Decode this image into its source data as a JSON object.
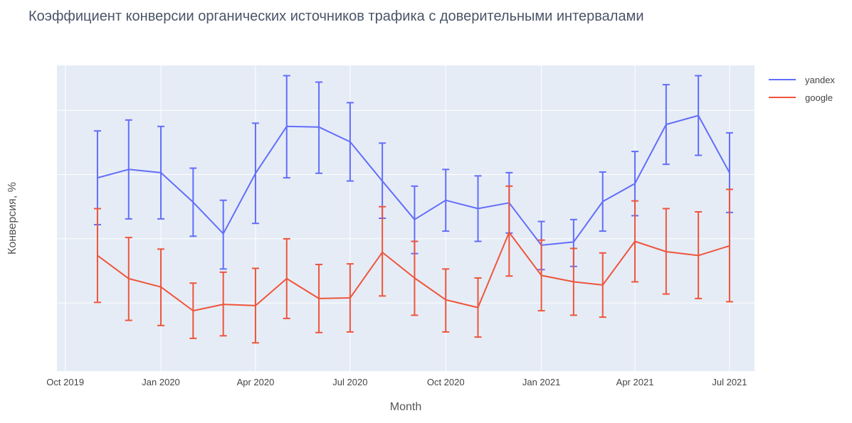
{
  "title": "Коэффициент конверсии органических источников трафика с доверительными интервалами",
  "chart_data": {
    "type": "line",
    "title": "Коэффициент конверсии органических источников трафика с доверительными интервалами",
    "xlabel": "Month",
    "ylabel": "Конверсия, %",
    "x_tick_labels": [
      "Oct 2019",
      "Jan 2020",
      "Apr 2020",
      "Jul 2020",
      "Oct 2020",
      "Jan 2021",
      "Apr 2021",
      "Jul 2021"
    ],
    "x": [
      "2019-11-01",
      "2019-12-01",
      "2020-01-01",
      "2020-02-01",
      "2020-03-01",
      "2020-04-01",
      "2020-05-01",
      "2020-06-01",
      "2020-07-01",
      "2020-08-01",
      "2020-09-01",
      "2020-10-01",
      "2020-11-01",
      "2020-12-01",
      "2021-01-01",
      "2021-02-01",
      "2021-03-01",
      "2021-04-01",
      "2021-05-01",
      "2021-06-01",
      "2021-07-01"
    ],
    "xlim": [
      "2019-09-23",
      "2021-07-25"
    ],
    "ylim": [
      0.94,
      5.7
    ],
    "y_grid_values": [
      2,
      3,
      4,
      5
    ],
    "grid": true,
    "legend_position": "top-right",
    "background": "#e5ecf6",
    "series": [
      {
        "name": "yandex",
        "color": "#636efa",
        "values": [
          3.95,
          4.08,
          4.03,
          3.57,
          3.08,
          4.02,
          4.75,
          4.74,
          4.51,
          3.9,
          3.3,
          3.6,
          3.47,
          3.56,
          2.9,
          2.95,
          3.58,
          3.86,
          4.78,
          4.92,
          4.03
        ],
        "error_plus": [
          0.73,
          0.77,
          0.72,
          0.53,
          0.52,
          0.78,
          0.79,
          0.7,
          0.61,
          0.59,
          0.52,
          0.48,
          0.51,
          0.47,
          0.37,
          0.35,
          0.46,
          0.5,
          0.62,
          0.62,
          0.62
        ],
        "error_minus": [
          0.73,
          0.77,
          0.72,
          0.53,
          0.55,
          0.78,
          0.8,
          0.72,
          0.61,
          0.58,
          0.53,
          0.48,
          0.51,
          0.47,
          0.38,
          0.38,
          0.46,
          0.5,
          0.62,
          0.62,
          0.62
        ]
      },
      {
        "name": "google",
        "color": "#ef553b",
        "values": [
          2.74,
          2.38,
          2.25,
          1.88,
          1.98,
          1.96,
          2.38,
          2.07,
          2.08,
          2.79,
          2.39,
          2.05,
          1.93,
          3.1,
          2.43,
          2.33,
          2.28,
          2.96,
          2.8,
          2.74,
          2.89
        ],
        "error_plus": [
          0.73,
          0.64,
          0.59,
          0.43,
          0.5,
          0.58,
          0.62,
          0.53,
          0.53,
          0.71,
          0.57,
          0.48,
          0.46,
          0.72,
          0.55,
          0.52,
          0.5,
          0.63,
          0.67,
          0.68,
          0.88
        ],
        "error_minus": [
          0.73,
          0.65,
          0.6,
          0.43,
          0.49,
          0.58,
          0.62,
          0.53,
          0.53,
          0.68,
          0.58,
          0.5,
          0.46,
          0.68,
          0.55,
          0.52,
          0.5,
          0.63,
          0.66,
          0.67,
          0.87
        ]
      }
    ]
  }
}
